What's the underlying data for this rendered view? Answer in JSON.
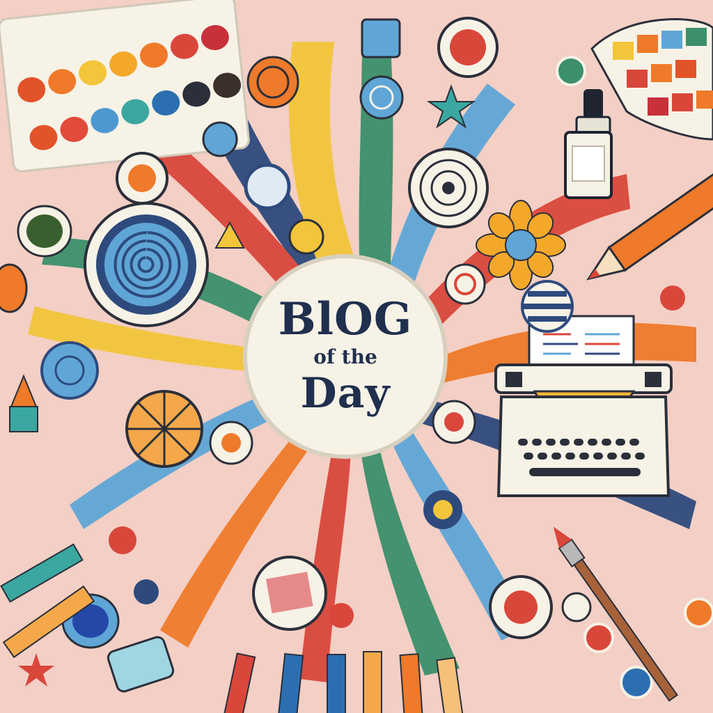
{
  "badge": {
    "line1": "BlOG",
    "line2": "of the",
    "line3": "Day"
  },
  "palette": {
    "background": "#f3cfc5",
    "navy": "#1f2f4d",
    "red": "#d9473b",
    "orange": "#ee7a2a",
    "yellow": "#f2c53a",
    "green": "#3b8f6b",
    "blue": "#5fa6d6",
    "cream": "#f6f2e6"
  },
  "icons": [
    "watercolor-palette-icon",
    "paint-swatch-fan-icon",
    "ink-bottle-icon",
    "typewriter-icon",
    "pencil-icon",
    "paintbrush-icon",
    "flower-icon",
    "spiral-icon",
    "star-icon",
    "paint-jar-icon"
  ]
}
